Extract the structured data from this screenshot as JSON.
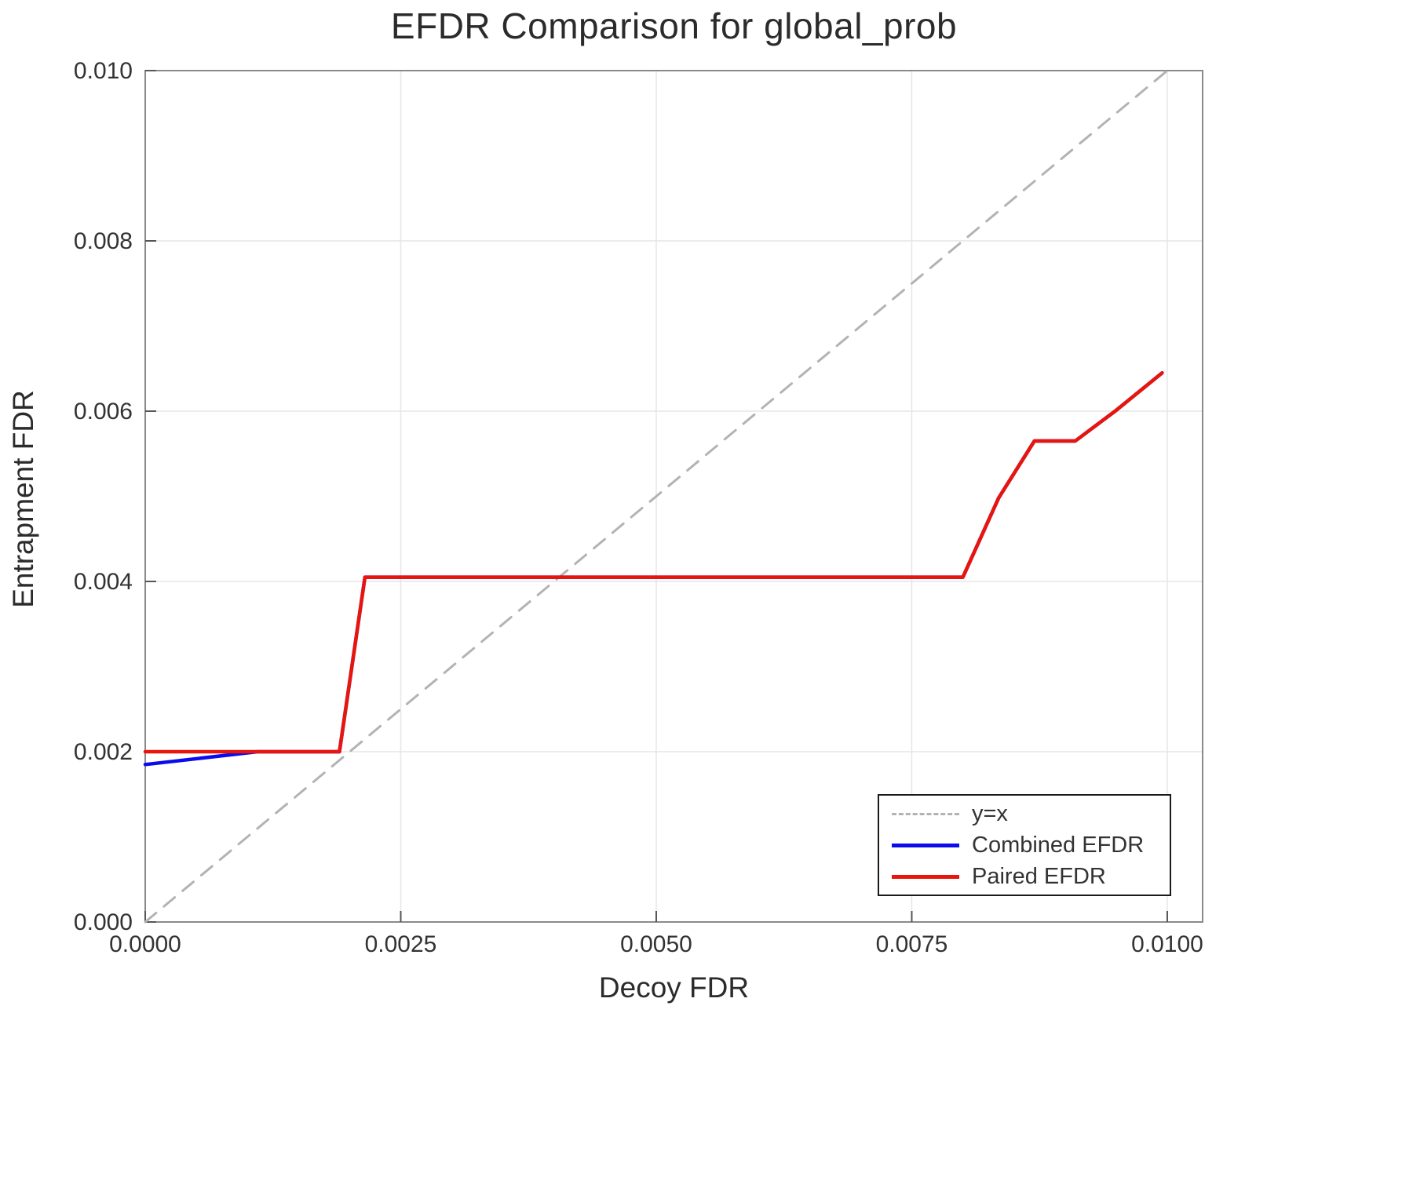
{
  "title": "EFDR Comparison for global_prob",
  "xlabel": "Decoy FDR",
  "ylabel": "Entrapment FDR",
  "legend": {
    "items": [
      {
        "label": "y=x"
      },
      {
        "label": "Combined EFDR"
      },
      {
        "label": "Paired EFDR"
      }
    ]
  },
  "colors": {
    "identity_line": "#b3b3b3",
    "combined_efdr": "#0b0bec",
    "paired_efdr": "#e8150d",
    "grid": "#e6e6e6",
    "frame": "#8a8a8a",
    "tick": "#555555",
    "tick_text": "#333333"
  },
  "chart_data": {
    "type": "line",
    "title": "EFDR Comparison for global_prob",
    "xlabel": "Decoy FDR",
    "ylabel": "Entrapment FDR",
    "xlim": [
      0,
      0.010346
    ],
    "ylim": [
      0,
      0.01
    ],
    "grid": true,
    "legend_position": "bottom-right",
    "xticks": [
      0.0,
      0.0025,
      0.005,
      0.0075,
      0.01
    ],
    "xticklabels": [
      "0.0000",
      "0.0025",
      "0.0050",
      "0.0075",
      "0.0100"
    ],
    "yticks": [
      0.0,
      0.002,
      0.004,
      0.006,
      0.008,
      0.01
    ],
    "yticklabels": [
      "0.000",
      "0.002",
      "0.004",
      "0.006",
      "0.008",
      "0.010"
    ],
    "series": [
      {
        "name": "y=x",
        "color": "#b3b3b3",
        "dash": true,
        "width": 3,
        "points": [
          [
            0.0,
            0.0
          ],
          [
            0.01,
            0.01
          ]
        ]
      },
      {
        "name": "Combined EFDR",
        "color": "#0b0bec",
        "dash": false,
        "width": 4.5,
        "points": [
          [
            0.0,
            0.00185
          ],
          [
            0.0011,
            0.002
          ],
          [
            0.0019,
            0.002
          ],
          [
            0.00215,
            0.00405
          ],
          [
            0.008,
            0.00405
          ],
          [
            0.00835,
            0.00498
          ],
          [
            0.0087,
            0.00565
          ],
          [
            0.0091,
            0.00565
          ],
          [
            0.0095,
            0.00601
          ],
          [
            0.00995,
            0.00645
          ]
        ]
      },
      {
        "name": "Paired EFDR",
        "color": "#e8150d",
        "dash": false,
        "width": 4.5,
        "points": [
          [
            0.0,
            0.002
          ],
          [
            0.0019,
            0.002
          ],
          [
            0.00215,
            0.00405
          ],
          [
            0.008,
            0.00405
          ],
          [
            0.00835,
            0.00498
          ],
          [
            0.0087,
            0.00565
          ],
          [
            0.0091,
            0.00565
          ],
          [
            0.0095,
            0.00601
          ],
          [
            0.00995,
            0.00645
          ]
        ]
      }
    ]
  }
}
